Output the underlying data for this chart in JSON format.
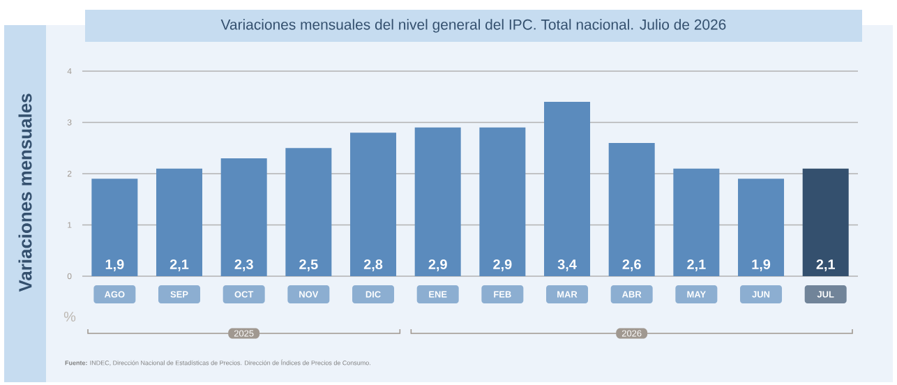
{
  "chart_data": {
    "type": "bar",
    "title": "Variaciones mensuales del nivel general del IPC. Total nacional. Julio de 2026",
    "ylabel": "Variaciones mensuales",
    "categories": [
      "AGO",
      "SEP",
      "OCT",
      "NOV",
      "DIC",
      "ENE",
      "FEB",
      "MAR",
      "ABR",
      "MAY",
      "JUN",
      "JUL"
    ],
    "values": [
      1.9,
      2.1,
      2.3,
      2.5,
      2.8,
      2.9,
      2.9,
      3.4,
      2.6,
      2.1,
      1.9,
      2.1
    ],
    "value_labels": [
      "1,9",
      "2,1",
      "2,3",
      "2,5",
      "2,8",
      "2,9",
      "2,9",
      "3,4",
      "2,6",
      "2,1",
      "1,9",
      "2,1"
    ],
    "colors": [
      "#5b8bbd",
      "#5b8bbd",
      "#5b8bbd",
      "#5b8bbd",
      "#5b8bbd",
      "#5b8bbd",
      "#5b8bbd",
      "#5b8bbd",
      "#5b8bbd",
      "#5b8bbd",
      "#5b8bbd",
      "#34506e"
    ],
    "ylim": [
      0,
      4
    ],
    "yticks": [
      0,
      1,
      2,
      3,
      4
    ],
    "grid": "y",
    "annotations": [
      "%",
      "2025",
      "2026",
      "**Fuente:** INDEC, Dirección Nacional de Estadísticas de Precios. Dirección de Índices de Precios de Consumo."
    ]
  }
}
